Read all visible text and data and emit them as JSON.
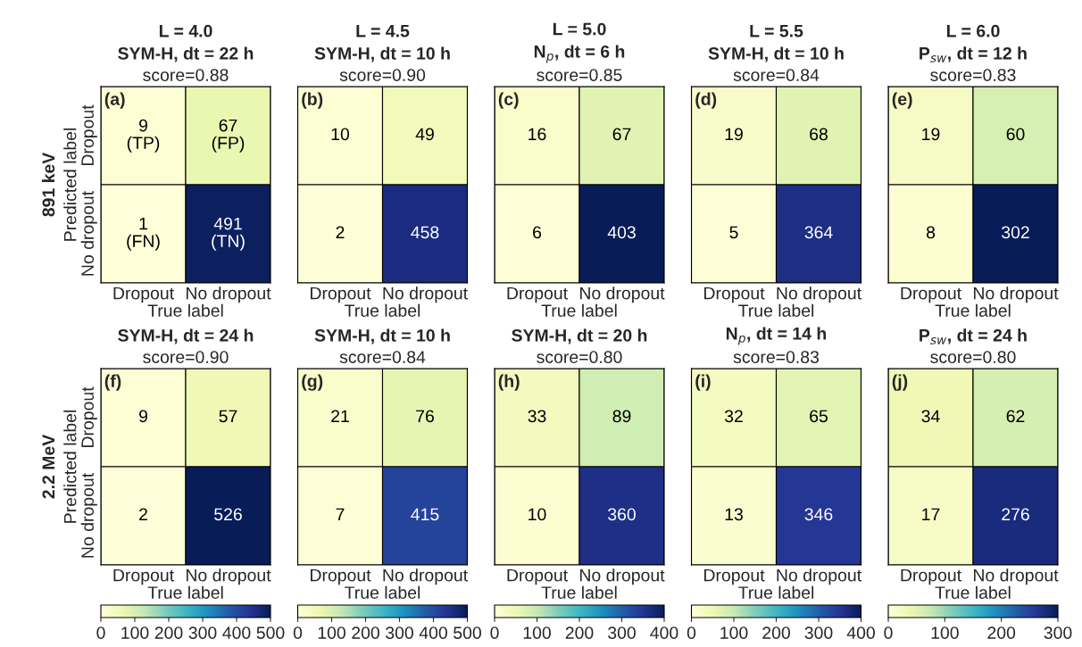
{
  "chart_data": [
    {
      "type": "heatmap",
      "title": "L = 4.0\nSYM-H, dt = 22 h",
      "subtitle": "score=0.88",
      "xlabel": "True label",
      "ylabel": "Predicted label",
      "categories": [
        "Dropout",
        "No dropout"
      ],
      "y_categories": [
        "Dropout",
        "No dropout"
      ],
      "cells": [
        [
          9,
          67
        ],
        [
          1,
          491
        ]
      ],
      "cell_labels": [
        [
          "9\n(TP)",
          "67\n(FP)"
        ],
        [
          "1\n(FN)",
          "491\n(TN)"
        ]
      ],
      "annotations": [
        "(a)",
        "891 keV"
      ]
    },
    {
      "type": "heatmap",
      "title": "L = 4.5\nSYM-H, dt = 10 h",
      "subtitle": "score=0.90",
      "xlabel": "True label",
      "categories": [
        "Dropout",
        "No dropout"
      ],
      "y_categories": [
        null,
        null
      ],
      "cells": [
        [
          10,
          49
        ],
        [
          2,
          458
        ]
      ],
      "data_labels": true,
      "tick_labels": "x",
      "annotations": [
        "(b)"
      ]
    },
    {
      "type": "heatmap",
      "title": "L = 5.0\nN$_{p}$, dt = 6 h",
      "subtitle": "score=0.85",
      "xlabel": "True label",
      "categories": [
        "Dropout",
        "No dropout"
      ],
      "y_categories": [
        null,
        null
      ],
      "cells": [
        [
          16,
          67
        ],
        [
          6,
          403
        ]
      ],
      "data_labels": true,
      "tick_labels": "x",
      "annotations": [
        "(c)"
      ]
    },
    {
      "type": "heatmap",
      "title": "L = 5.5\nSYM-H, dt = 10 h",
      "subtitle": "score=0.84",
      "xlabel": "True label",
      "categories": [
        "Dropout",
        "No dropout"
      ],
      "y_categories": [
        null,
        null
      ],
      "cells": [
        [
          19,
          68
        ],
        [
          5,
          364
        ]
      ],
      "data_labels": true,
      "tick_labels": "x",
      "annotations": [
        "(d)"
      ]
    },
    {
      "type": "heatmap",
      "title": "L = 6.0\nP$_{sw}$, dt = 12 h",
      "subtitle": "score=0.83",
      "xlabel": "True label",
      "categories": [
        "Dropout",
        "No dropout"
      ],
      "y_categories": [
        null,
        null
      ],
      "cells": [
        [
          19,
          60
        ],
        [
          8,
          302
        ]
      ],
      "data_labels": true,
      "tick_labels": "x",
      "annotations": [
        "(e)"
      ]
    },
    {
      "type": "heatmap",
      "title": "SYM-H, dt = 24 h",
      "subtitle": "score=0.90",
      "xlabel": "True label",
      "ylabel": "Predicted label",
      "categories": [
        "Dropout",
        "No dropout"
      ],
      "y_categories": [
        "Dropout",
        "No dropout"
      ],
      "cells": [
        [
          9,
          57
        ],
        [
          2,
          526
        ]
      ],
      "data_labels": true,
      "clim": [
        0,
        500
      ],
      "cticks": [
        0,
        100,
        200,
        300,
        400,
        500
      ],
      "annotations": [
        "(f)",
        "2.2 MeV"
      ]
    },
    {
      "type": "heatmap",
      "title": "SYM-H, dt = 10 h",
      "subtitle": "score=0.84",
      "xlabel": "True label",
      "categories": [
        "Dropout",
        "No dropout"
      ],
      "y_categories": [
        null,
        null
      ],
      "cells": [
        [
          21,
          76
        ],
        [
          7,
          415
        ]
      ],
      "data_labels": true,
      "clim": [
        0,
        500
      ],
      "cticks": [
        0,
        100,
        200,
        300,
        400,
        500
      ],
      "tick_labels": "x",
      "annotations": [
        "(g)"
      ]
    },
    {
      "type": "heatmap",
      "title": "SYM-H, dt = 20 h",
      "subtitle": "score=0.80",
      "xlabel": "True label",
      "categories": [
        "Dropout",
        "No dropout"
      ],
      "y_categories": [
        null,
        null
      ],
      "cells": [
        [
          33,
          89
        ],
        [
          10,
          360
        ]
      ],
      "data_labels": true,
      "clim": [
        0,
        400
      ],
      "cticks": [
        0,
        100,
        200,
        300,
        400
      ],
      "tick_labels": "x",
      "annotations": [
        "(h)"
      ]
    },
    {
      "type": "heatmap",
      "title": "N$_{p}$, dt = 14 h",
      "subtitle": "score=0.83",
      "xlabel": "True label",
      "categories": [
        "Dropout",
        "No dropout"
      ],
      "y_categories": [
        null,
        null
      ],
      "cells": [
        [
          32,
          65
        ],
        [
          13,
          346
        ]
      ],
      "data_labels": true,
      "clim": [
        0,
        400
      ],
      "cticks": [
        0,
        100,
        200,
        300,
        400
      ],
      "tick_labels": "x",
      "annotations": [
        "(i)"
      ]
    },
    {
      "type": "heatmap",
      "title": "P$_{sw}$, dt = 24 h",
      "subtitle": "score=0.80",
      "xlabel": "True label",
      "categories": [
        "Dropout",
        "No dropout"
      ],
      "y_categories": [
        null,
        null
      ],
      "cells": [
        [
          34,
          62
        ],
        [
          17,
          276
        ]
      ],
      "data_labels": true,
      "clim": [
        0,
        300
      ],
      "cticks": [
        0,
        100,
        200,
        300
      ],
      "tick_labels": "x",
      "annotations": [
        "(j)"
      ]
    }
  ]
}
